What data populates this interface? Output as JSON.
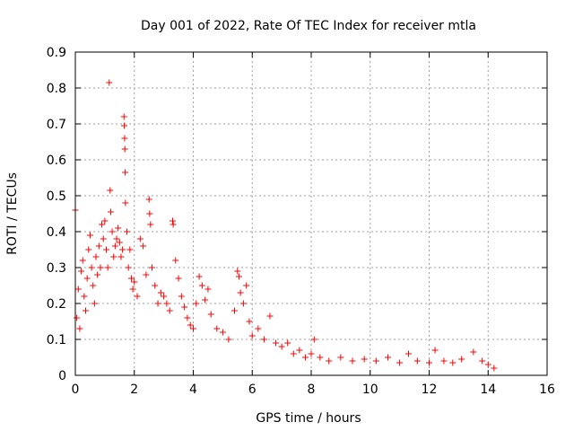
{
  "chart_data": {
    "type": "scatter",
    "title": "Day 001 of 2022, Rate Of TEC Index for receiver mtla",
    "xlabel": "GPS time / hours",
    "ylabel": "ROTI / TECUs",
    "xlim": [
      0,
      16
    ],
    "ylim": [
      0,
      0.9
    ],
    "xticks": [
      0,
      2,
      4,
      6,
      8,
      10,
      12,
      14,
      16
    ],
    "yticks": [
      0,
      0.1,
      0.2,
      0.3,
      0.4,
      0.5,
      0.6,
      0.7,
      0.8,
      0.9
    ],
    "xtick_labels": [
      "0",
      "2",
      "4",
      "6",
      "8",
      "10",
      "12",
      "14",
      "16"
    ],
    "ytick_labels": [
      "0",
      "0.1",
      "0.2",
      "0.3",
      "0.4",
      "0.5",
      "0.6",
      "0.7",
      "0.8",
      "0.9"
    ],
    "grid": true,
    "marker": "+",
    "color": "#ff0000",
    "series": [
      {
        "name": "ROTI",
        "points": [
          [
            0.0,
            0.46
          ],
          [
            0.05,
            0.16
          ],
          [
            0.1,
            0.24
          ],
          [
            0.15,
            0.13
          ],
          [
            0.2,
            0.29
          ],
          [
            0.25,
            0.32
          ],
          [
            0.3,
            0.22
          ],
          [
            0.35,
            0.18
          ],
          [
            0.4,
            0.27
          ],
          [
            0.45,
            0.35
          ],
          [
            0.5,
            0.39
          ],
          [
            0.55,
            0.3
          ],
          [
            0.6,
            0.25
          ],
          [
            0.65,
            0.2
          ],
          [
            0.7,
            0.33
          ],
          [
            0.75,
            0.28
          ],
          [
            0.8,
            0.36
          ],
          [
            0.85,
            0.3
          ],
          [
            0.9,
            0.42
          ],
          [
            0.95,
            0.38
          ],
          [
            1.0,
            0.43
          ],
          [
            1.05,
            0.35
          ],
          [
            1.1,
            0.3
          ],
          [
            1.15,
            0.815
          ],
          [
            1.18,
            0.515
          ],
          [
            1.2,
            0.455
          ],
          [
            1.25,
            0.4
          ],
          [
            1.3,
            0.33
          ],
          [
            1.35,
            0.36
          ],
          [
            1.4,
            0.38
          ],
          [
            1.45,
            0.41
          ],
          [
            1.5,
            0.37
          ],
          [
            1.55,
            0.33
          ],
          [
            1.6,
            0.35
          ],
          [
            1.65,
            0.72
          ],
          [
            1.66,
            0.695
          ],
          [
            1.67,
            0.66
          ],
          [
            1.68,
            0.63
          ],
          [
            1.69,
            0.565
          ],
          [
            1.7,
            0.48
          ],
          [
            1.75,
            0.4
          ],
          [
            1.8,
            0.3
          ],
          [
            1.85,
            0.35
          ],
          [
            1.9,
            0.27
          ],
          [
            1.95,
            0.24
          ],
          [
            2.0,
            0.26
          ],
          [
            2.1,
            0.22
          ],
          [
            2.2,
            0.38
          ],
          [
            2.3,
            0.36
          ],
          [
            2.4,
            0.28
          ],
          [
            2.5,
            0.49
          ],
          [
            2.52,
            0.45
          ],
          [
            2.55,
            0.42
          ],
          [
            2.6,
            0.3
          ],
          [
            2.7,
            0.25
          ],
          [
            2.8,
            0.2
          ],
          [
            2.9,
            0.23
          ],
          [
            3.0,
            0.22
          ],
          [
            3.1,
            0.2
          ],
          [
            3.2,
            0.18
          ],
          [
            3.3,
            0.43
          ],
          [
            3.32,
            0.42
          ],
          [
            3.4,
            0.32
          ],
          [
            3.5,
            0.27
          ],
          [
            3.6,
            0.22
          ],
          [
            3.7,
            0.19
          ],
          [
            3.8,
            0.16
          ],
          [
            3.9,
            0.14
          ],
          [
            4.0,
            0.13
          ],
          [
            4.1,
            0.2
          ],
          [
            4.2,
            0.275
          ],
          [
            4.3,
            0.25
          ],
          [
            4.4,
            0.21
          ],
          [
            4.5,
            0.24
          ],
          [
            4.6,
            0.17
          ],
          [
            4.8,
            0.13
          ],
          [
            5.0,
            0.12
          ],
          [
            5.2,
            0.1
          ],
          [
            5.4,
            0.18
          ],
          [
            5.5,
            0.29
          ],
          [
            5.55,
            0.275
          ],
          [
            5.6,
            0.23
          ],
          [
            5.7,
            0.2
          ],
          [
            5.8,
            0.25
          ],
          [
            5.9,
            0.15
          ],
          [
            6.0,
            0.11
          ],
          [
            6.2,
            0.13
          ],
          [
            6.4,
            0.1
          ],
          [
            6.6,
            0.165
          ],
          [
            6.8,
            0.09
          ],
          [
            7.0,
            0.08
          ],
          [
            7.2,
            0.09
          ],
          [
            7.4,
            0.06
          ],
          [
            7.6,
            0.07
          ],
          [
            7.8,
            0.05
          ],
          [
            8.0,
            0.06
          ],
          [
            8.1,
            0.1
          ],
          [
            8.3,
            0.05
          ],
          [
            8.6,
            0.04
          ],
          [
            9.0,
            0.05
          ],
          [
            9.4,
            0.04
          ],
          [
            9.8,
            0.045
          ],
          [
            10.2,
            0.04
          ],
          [
            10.6,
            0.05
          ],
          [
            11.0,
            0.035
          ],
          [
            11.3,
            0.06
          ],
          [
            11.6,
            0.04
          ],
          [
            12.0,
            0.035
          ],
          [
            12.2,
            0.07
          ],
          [
            12.5,
            0.04
          ],
          [
            12.8,
            0.035
          ],
          [
            13.1,
            0.045
          ],
          [
            13.5,
            0.065
          ],
          [
            13.8,
            0.04
          ],
          [
            14.0,
            0.03
          ],
          [
            14.2,
            0.02
          ]
        ]
      }
    ]
  }
}
